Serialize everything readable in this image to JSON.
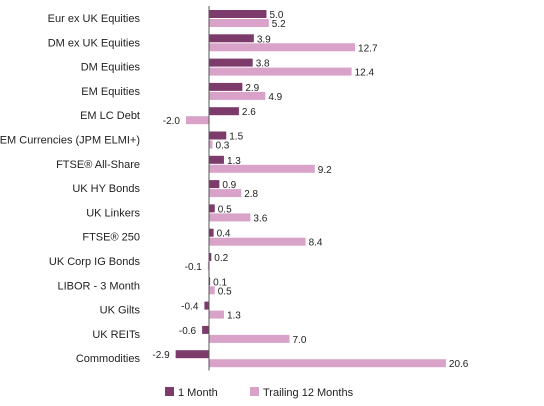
{
  "chart_data": {
    "type": "bar",
    "orientation": "horizontal",
    "categories": [
      "Eur ex UK Equities",
      "DM ex UK Equities",
      "DM Equities",
      "EM Equities",
      "EM LC Debt",
      "EM Currencies (JPM ELMI+)",
      "FTSE® All-Share",
      "UK HY Bonds",
      "UK Linkers",
      "FTSE® 250",
      "UK Corp IG Bonds",
      "LIBOR - 3 Month",
      "UK Gilts",
      "UK REITs",
      "Commodities"
    ],
    "series": [
      {
        "name": "1 Month",
        "color": "#7d3b6b",
        "values": [
          5.0,
          3.9,
          3.8,
          2.9,
          2.6,
          1.5,
          1.3,
          0.9,
          0.5,
          0.4,
          0.2,
          0.1,
          -0.4,
          -0.6,
          -2.9
        ],
        "labels": [
          "5.0",
          "3.9",
          "3.8",
          "2.9",
          "2.6",
          "1.5",
          "1.3",
          "0.9",
          "0.5",
          "0.4",
          "0.2",
          "0.1",
          "-0.4",
          "-0.6",
          "-2.9"
        ]
      },
      {
        "name": "Trailing 12 Months",
        "color": "#d9a3c9",
        "values": [
          5.2,
          12.7,
          12.4,
          4.9,
          -2.0,
          0.3,
          9.2,
          2.8,
          3.6,
          8.4,
          -0.1,
          0.5,
          1.3,
          7.0,
          20.6
        ],
        "labels": [
          "5.2",
          "12.7",
          "12.4",
          "4.9",
          "-2.0",
          "0.3",
          "9.2",
          "2.8",
          "3.6",
          "8.4",
          "-0.1",
          "0.5",
          "1.3",
          "7.0",
          "20.6"
        ]
      }
    ],
    "xlim": [
      -2.9,
      20.6
    ],
    "grid": false,
    "legend_position": "bottom"
  }
}
